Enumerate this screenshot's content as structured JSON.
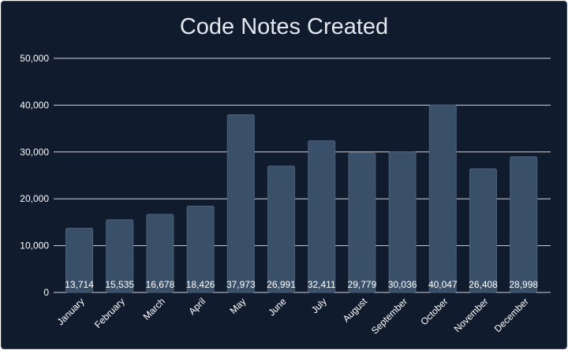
{
  "chart_data": {
    "type": "bar",
    "title": "Code Notes Created",
    "xlabel": "",
    "ylabel": "",
    "categories": [
      "January",
      "February",
      "March",
      "April",
      "May",
      "June",
      "July",
      "August",
      "September",
      "October",
      "November",
      "December"
    ],
    "values": [
      13714,
      15535,
      16678,
      18426,
      37973,
      26991,
      32411,
      29779,
      30036,
      40047,
      26408,
      28998
    ],
    "data_labels": [
      "13,714",
      "15,535",
      "16,678",
      "18,426",
      "37,973",
      "26,991",
      "32,411",
      "29,779",
      "30,036",
      "40,047",
      "26,408",
      "28,998"
    ],
    "ylim": [
      0,
      50000
    ],
    "yticks": [
      0,
      10000,
      20000,
      30000,
      40000,
      50000
    ],
    "ytick_labels": [
      "0",
      "10,000",
      "20,000",
      "30,000",
      "40,000",
      "50,000"
    ],
    "grid": true,
    "legend": "none",
    "colors": {
      "background": "#111b2e",
      "bar": "#3a5068",
      "bar_edge": "#4a6079",
      "grid": "#e6e9ee",
      "text": "#ffffff",
      "title": "#e3e7ee"
    }
  }
}
